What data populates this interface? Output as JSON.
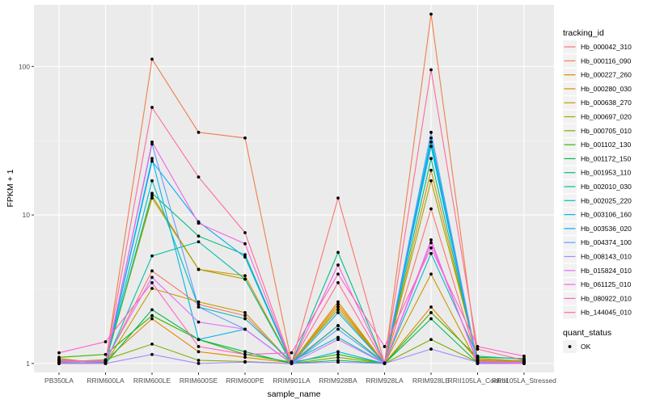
{
  "chart_data": {
    "type": "line",
    "xlabel": "sample_name",
    "ylabel": "FPKM + 1",
    "y_scale": "log10",
    "ylim": [
      0.87,
      260
    ],
    "y_ticks": [
      1,
      10,
      100
    ],
    "y_tick_labels": [
      "1",
      "10",
      "100"
    ],
    "categories": [
      "PB350LA",
      "RRIM600LA",
      "RRIM600LE",
      "RRIM600SE",
      "RRIM600PE",
      "RRIM901LA",
      "RRIM928BA",
      "RRIM928LA",
      "RRIM928LE",
      "RRII105LA_Control",
      "RRII105LA_Stressed"
    ],
    "grid": true,
    "legend_position": "right",
    "legend_title": "tracking_id",
    "legend2_title": "quant_status",
    "legend2_items": [
      {
        "label": "OK",
        "shape": "point"
      }
    ],
    "series": [
      {
        "name": "Hb_000042_310",
        "color": "#F8766D",
        "values": [
          1.05,
          1.03,
          4.2,
          2.5,
          2.1,
          1.0,
          13.0,
          1.0,
          11.0,
          1.05,
          1.05
        ]
      },
      {
        "name": "Hb_000116_090",
        "color": "#F07E4B",
        "values": [
          1.08,
          1.0,
          112.0,
          36.0,
          33.0,
          1.02,
          1.8,
          1.01,
          225.0,
          1.06,
          1.03
        ]
      },
      {
        "name": "Hb_000227_260",
        "color": "#E58700",
        "values": [
          1.02,
          1.05,
          2.0,
          1.2,
          1.1,
          1.01,
          2.5,
          1.0,
          2.4,
          1.05,
          1.02
        ]
      },
      {
        "name": "Hb_000280_030",
        "color": "#D89000",
        "values": [
          1.04,
          1.01,
          13.5,
          4.3,
          3.9,
          1.01,
          2.6,
          1.0,
          20.0,
          1.04,
          1.03
        ]
      },
      {
        "name": "Hb_000638_270",
        "color": "#C99800",
        "values": [
          1.0,
          1.0,
          3.2,
          2.6,
          2.2,
          1.0,
          2.4,
          1.0,
          4.0,
          1.0,
          1.0
        ]
      },
      {
        "name": "Hb_000697_020",
        "color": "#A3A500",
        "values": [
          1.06,
          1.02,
          13.0,
          4.3,
          3.7,
          1.02,
          2.3,
          1.0,
          17.0,
          1.08,
          1.04
        ]
      },
      {
        "name": "Hb_000705_010",
        "color": "#7CAE00",
        "values": [
          1.02,
          1.06,
          1.35,
          1.05,
          1.03,
          1.0,
          1.1,
          1.0,
          1.45,
          1.02,
          1.0
        ]
      },
      {
        "name": "Hb_001102_130",
        "color": "#39B600",
        "values": [
          1.1,
          1.15,
          2.1,
          1.45,
          1.15,
          1.02,
          1.15,
          1.0,
          2.2,
          1.1,
          1.08
        ]
      },
      {
        "name": "Hb_001172_150",
        "color": "#00BB4E",
        "values": [
          1.01,
          1.0,
          2.3,
          1.45,
          1.2,
          1.0,
          1.05,
          1.0,
          2.0,
          1.01,
          1.0
        ]
      },
      {
        "name": "Hb_001953_110",
        "color": "#00BF7D",
        "values": [
          1.0,
          1.01,
          14.0,
          7.2,
          5.4,
          1.01,
          5.6,
          1.0,
          24.0,
          1.02,
          1.02
        ]
      },
      {
        "name": "Hb_002010_030",
        "color": "#00C1A3",
        "values": [
          1.01,
          1.0,
          5.3,
          6.6,
          3.7,
          1.0,
          1.8,
          1.0,
          31.0,
          1.01,
          1.01
        ]
      },
      {
        "name": "Hb_002025_220",
        "color": "#00BFC4",
        "values": [
          1.03,
          1.02,
          17.0,
          2.4,
          2.0,
          1.03,
          1.5,
          1.0,
          5.5,
          1.12,
          1.07
        ]
      },
      {
        "name": "Hb_003106_160",
        "color": "#00B8E5",
        "values": [
          1.0,
          1.0,
          24.0,
          1.45,
          1.7,
          1.0,
          1.2,
          1.0,
          33.0,
          1.0,
          1.0
        ]
      },
      {
        "name": "Hb_003536_020",
        "color": "#00ABFD",
        "values": [
          1.0,
          1.01,
          23.0,
          9.0,
          5.2,
          1.0,
          2.2,
          1.0,
          29.0,
          1.01,
          1.02
        ]
      },
      {
        "name": "Hb_004374_100",
        "color": "#619CFF",
        "values": [
          1.0,
          1.0,
          30.0,
          2.4,
          1.7,
          1.0,
          1.7,
          1.0,
          36.0,
          1.0,
          1.0
        ]
      },
      {
        "name": "Hb_008143_010",
        "color": "#A58AFF",
        "values": [
          1.05,
          1.0,
          1.15,
          1.0,
          1.02,
          1.0,
          1.02,
          1.0,
          1.25,
          1.02,
          1.02
        ]
      },
      {
        "name": "Hb_015824_010",
        "color": "#DF70F8",
        "values": [
          1.02,
          1.05,
          3.8,
          1.9,
          1.7,
          1.0,
          1.45,
          1.0,
          6.5,
          1.03,
          1.01
        ]
      },
      {
        "name": "Hb_061125_010",
        "color": "#F564E3",
        "values": [
          1.0,
          1.0,
          31.0,
          8.8,
          6.4,
          1.0,
          4.6,
          1.0,
          6.8,
          1.0,
          1.0
        ]
      },
      {
        "name": "Hb_080922_010",
        "color": "#FF61C9",
        "values": [
          1.18,
          1.4,
          3.5,
          1.3,
          1.15,
          1.18,
          4.0,
          1.3,
          6.0,
          1.3,
          1.12
        ]
      },
      {
        "name": "Hb_144045_010",
        "color": "#FF6C91",
        "values": [
          1.05,
          1.03,
          53.0,
          18.0,
          7.6,
          1.01,
          3.5,
          1.0,
          95.0,
          1.25,
          1.05
        ]
      }
    ]
  }
}
